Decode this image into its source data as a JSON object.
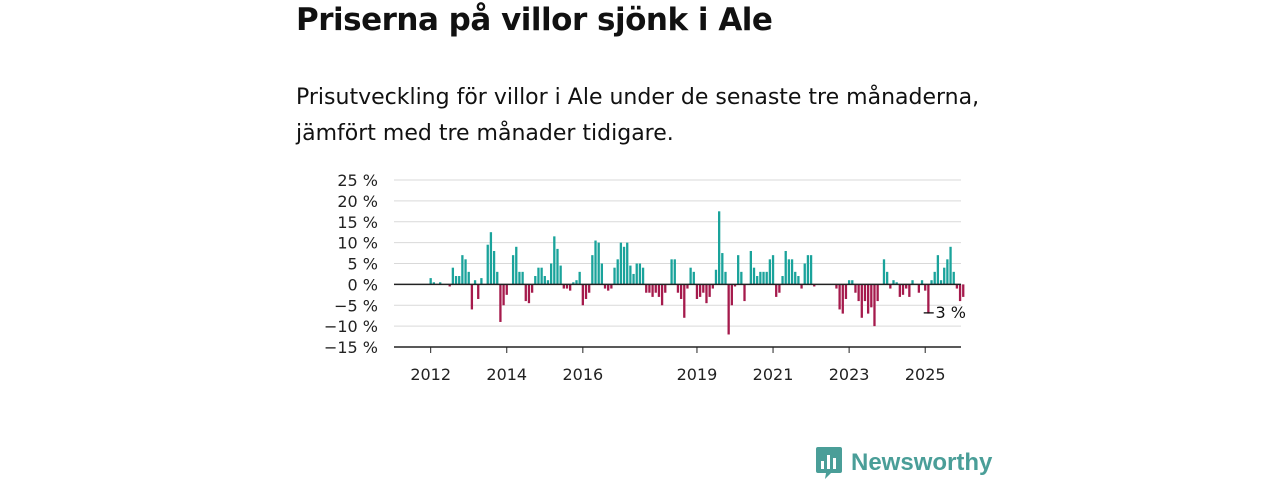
{
  "title": "Priserna på villor sjönk i Ale",
  "subtitle": "Prisutveckling för villor i Ale under de senaste tre månaderna, jämfört med tre månader tidigare.",
  "logo_text": "Newsworthy",
  "logo_icon": "newsworthy-bar-chart-icon",
  "colors": {
    "positive": "#1aa39b",
    "negative": "#a51a4c",
    "grid": "#d9d9d9",
    "zero": "#222222",
    "logo": "#4a9e98"
  },
  "chart_data": {
    "type": "bar",
    "title": "",
    "xlabel": "",
    "ylabel": "",
    "ylim": [
      -15,
      25
    ],
    "yticks": [
      25,
      20,
      15,
      10,
      5,
      0,
      -5,
      -10,
      -15
    ],
    "ytick_labels": [
      "25 %",
      "20 %",
      "15 %",
      "10 %",
      "5 %",
      "0 %",
      "−5 %",
      "−10 %",
      "−15 %"
    ],
    "xtick_labels": [
      "2012",
      "2014",
      "2016",
      "2019",
      "2021",
      "2023",
      "2025"
    ],
    "x_start": "2011-09",
    "x_end": "2025-06",
    "grid": true,
    "legend": "none",
    "annotation": {
      "label": "−3 %",
      "x": "2025-06"
    },
    "values": [
      0,
      0,
      0,
      0,
      1.5,
      0.5,
      0,
      0.5,
      0,
      0,
      -0.5,
      4,
      2,
      2,
      7,
      6,
      3,
      -6,
      1,
      -3.5,
      1.5,
      0,
      9.5,
      12.5,
      8,
      3,
      -9,
      -5,
      -2.5,
      0,
      7,
      9,
      3,
      3,
      -4,
      -4.5,
      -2,
      2,
      4,
      4,
      2,
      1,
      5,
      11.5,
      8.5,
      4.5,
      -1,
      -1,
      -1.5,
      0.5,
      1,
      3,
      -5,
      -3.5,
      -2,
      7,
      10.5,
      10,
      5,
      -1,
      -1.5,
      -1,
      4,
      6,
      10,
      9,
      10,
      4.5,
      2.5,
      5,
      5,
      4,
      -2,
      -2,
      -3,
      -2,
      -3,
      -5,
      -2,
      0,
      6,
      6,
      -2,
      -3.5,
      -8,
      -1,
      4,
      3,
      -3.5,
      -3,
      -2,
      -4.5,
      -3,
      -1,
      3.5,
      17.5,
      7.5,
      3,
      -12,
      -5,
      -0.5,
      7,
      3,
      -4,
      0,
      8,
      4,
      2,
      3,
      3,
      3,
      6,
      7,
      -3,
      -2,
      2,
      8,
      6,
      6,
      3,
      2,
      -1,
      5,
      7,
      7,
      -0.5,
      0,
      0,
      0,
      0,
      0,
      0,
      -1,
      -6,
      -7,
      -3.5,
      1,
      1,
      -2,
      -4,
      -8,
      -4,
      -7,
      -5.5,
      -10,
      -4,
      0,
      6,
      3,
      -1,
      1,
      0.5,
      -3,
      -2.5,
      -1,
      -3,
      1,
      0,
      -2,
      1,
      -1.5,
      -7,
      1,
      3,
      7,
      1,
      4,
      6,
      9,
      3,
      -1,
      -4,
      -3
    ]
  }
}
